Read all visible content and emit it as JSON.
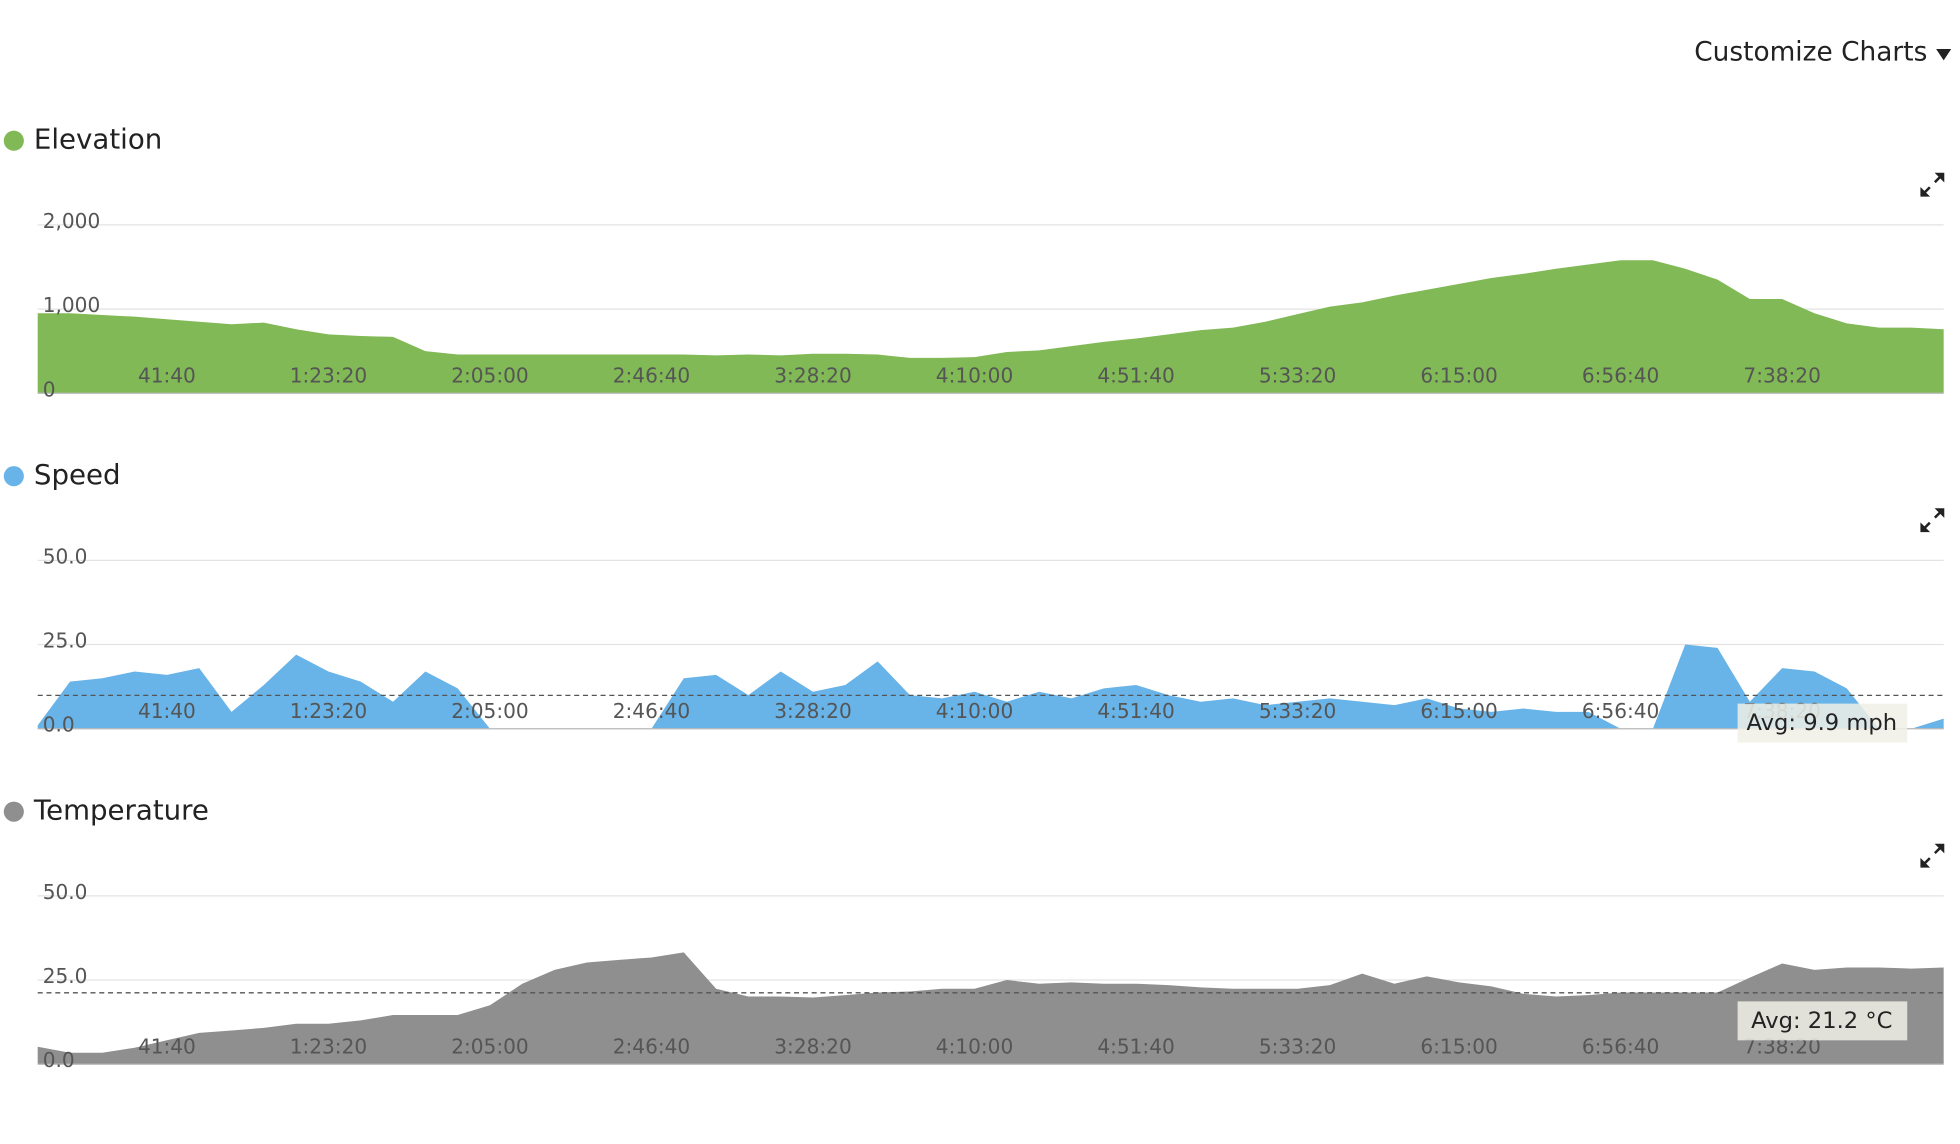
{
  "toolbar": {
    "button": "Customize Charts"
  },
  "chart_data": [
    {
      "type": "area",
      "title": "Elevation",
      "color": "#80b955",
      "x": [
        500,
        1000,
        1500,
        2000,
        2500,
        3000,
        3500,
        4000,
        4500,
        5000,
        5500,
        6000,
        6500,
        7000,
        7500,
        8000,
        8500,
        9000,
        9500,
        10000,
        10500,
        11000,
        11500,
        12000,
        12500,
        13000,
        13500,
        14000,
        14500,
        15000,
        15500,
        16000,
        16500,
        17000,
        17500,
        18000,
        18500,
        19000,
        19500,
        20000,
        20500,
        21000,
        21500,
        22000,
        22500,
        23000,
        23500,
        24000,
        24500,
        25000,
        25500,
        26000,
        26500,
        27000,
        27500,
        28000,
        28500,
        29000,
        29500,
        30000
      ],
      "values": [
        950,
        950,
        930,
        910,
        880,
        850,
        820,
        840,
        760,
        700,
        680,
        670,
        500,
        460,
        460,
        460,
        460,
        460,
        460,
        460,
        460,
        450,
        460,
        450,
        470,
        470,
        460,
        420,
        420,
        430,
        490,
        510,
        560,
        610,
        650,
        700,
        750,
        780,
        850,
        940,
        1030,
        1080,
        1160,
        1230,
        1300,
        1370,
        1420,
        1480,
        1530,
        1580,
        1580,
        1480,
        1350,
        1120,
        1120,
        950,
        830,
        780,
        780,
        760
      ],
      "xlim": [
        500,
        30000
      ],
      "xticks": [
        {
          "value": 2500,
          "label": "41:40"
        },
        {
          "value": 5000,
          "label": "1:23:20"
        },
        {
          "value": 7500,
          "label": "2:05:00"
        },
        {
          "value": 10000,
          "label": "2:46:40"
        },
        {
          "value": 12500,
          "label": "3:28:20"
        },
        {
          "value": 15000,
          "label": "4:10:00"
        },
        {
          "value": 17500,
          "label": "4:51:40"
        },
        {
          "value": 20000,
          "label": "5:33:20"
        },
        {
          "value": 22500,
          "label": "6:15:00"
        },
        {
          "value": 25000,
          "label": "6:56:40"
        },
        {
          "value": 27500,
          "label": "7:38:20"
        }
      ],
      "ylim": [
        0,
        2000
      ],
      "yticks": [
        0,
        {
          "value": 1000,
          "label": "1,000"
        },
        {
          "value": 2000,
          "label": "2,000"
        }
      ],
      "grid": true
    },
    {
      "type": "area",
      "title": "Speed",
      "color": "#68b3e8",
      "x": [
        500,
        1000,
        1500,
        2000,
        2500,
        3000,
        3500,
        4000,
        4500,
        5000,
        5500,
        6000,
        6500,
        7000,
        7500,
        8000,
        8500,
        9000,
        9500,
        10000,
        10500,
        11000,
        11500,
        12000,
        12500,
        13000,
        13500,
        14000,
        14500,
        15000,
        15500,
        16000,
        16500,
        17000,
        17500,
        18000,
        18500,
        19000,
        19500,
        20000,
        20500,
        21000,
        21500,
        22000,
        22500,
        23000,
        23500,
        24000,
        24500,
        25000,
        25500,
        26000,
        26500,
        27000,
        27500,
        28000,
        28500,
        29000,
        29500,
        30000
      ],
      "values": [
        1,
        14,
        15,
        17,
        16,
        18,
        5,
        13,
        22,
        17,
        14,
        8,
        17,
        12,
        0,
        0,
        0,
        0,
        0,
        0,
        15,
        16,
        10,
        17,
        11,
        13,
        20,
        10,
        9,
        11,
        8,
        11,
        9,
        12,
        13,
        10,
        8,
        9,
        7,
        8,
        9,
        8,
        7,
        9,
        6,
        5,
        6,
        5,
        5,
        0,
        0,
        25,
        24,
        8,
        18,
        17,
        12,
        0,
        0,
        3
      ],
      "xlim": [
        500,
        30000
      ],
      "xticks": [
        {
          "value": 2500,
          "label": "41:40"
        },
        {
          "value": 5000,
          "label": "1:23:20"
        },
        {
          "value": 7500,
          "label": "2:05:00"
        },
        {
          "value": 10000,
          "label": "2:46:40"
        },
        {
          "value": 12500,
          "label": "3:28:20"
        },
        {
          "value": 15000,
          "label": "4:10:00"
        },
        {
          "value": 17500,
          "label": "4:51:40"
        },
        {
          "value": 20000,
          "label": "5:33:20"
        },
        {
          "value": 22500,
          "label": "6:15:00"
        },
        {
          "value": 25000,
          "label": "6:56:40"
        },
        {
          "value": 27500,
          "label": "7:38:20"
        }
      ],
      "ylim": [
        0,
        50
      ],
      "yticks": [
        {
          "value": 0,
          "label": "0.0"
        },
        {
          "value": 25,
          "label": "25.0"
        },
        {
          "value": 50,
          "label": "50.0"
        }
      ],
      "grid": true,
      "average": {
        "value": 9.9,
        "label": "Avg: 9.9 mph"
      }
    },
    {
      "type": "area",
      "title": "Temperature",
      "color": "#8f8f8f",
      "x": [
        500,
        1000,
        1500,
        2000,
        2500,
        3000,
        3500,
        4000,
        4500,
        5000,
        5500,
        6000,
        6500,
        7000,
        7500,
        8000,
        8500,
        9000,
        9500,
        10000,
        10500,
        11000,
        11500,
        12000,
        12500,
        13000,
        13500,
        14000,
        14500,
        15000,
        15500,
        16000,
        16500,
        17000,
        17500,
        18000,
        18500,
        19000,
        19500,
        20000,
        20500,
        21000,
        21500,
        22000,
        22500,
        23000,
        23500,
        24000,
        24500,
        25000,
        25500,
        26000,
        26500,
        27000,
        27500,
        28000,
        28500,
        29000,
        29500,
        30000
      ],
      "values": [
        5.2,
        3.4,
        3.4,
        4.9,
        7.1,
        9.3,
        10,
        10.8,
        12,
        12,
        13,
        14.6,
        14.6,
        14.6,
        17.5,
        23.9,
        28,
        30.2,
        31,
        31.7,
        33.2,
        22.4,
        20.1,
        20.1,
        19.8,
        20.5,
        21.3,
        21.6,
        22.4,
        22.4,
        25,
        23.9,
        24.3,
        23.9,
        23.9,
        23.5,
        22.8,
        22.4,
        22.4,
        22.4,
        23.5,
        26.9,
        23.9,
        26.1,
        24.3,
        23.1,
        20.9,
        20.1,
        20.5,
        21.3,
        21.3,
        21.3,
        21.3,
        25.7,
        29.9,
        28,
        28.7,
        28.7,
        28.4,
        28.7
      ],
      "xlim": [
        500,
        30000
      ],
      "xticks": [
        {
          "value": 2500,
          "label": "41:40"
        },
        {
          "value": 5000,
          "label": "1:23:20"
        },
        {
          "value": 7500,
          "label": "2:05:00"
        },
        {
          "value": 10000,
          "label": "2:46:40"
        },
        {
          "value": 12500,
          "label": "3:28:20"
        },
        {
          "value": 15000,
          "label": "4:10:00"
        },
        {
          "value": 17500,
          "label": "4:51:40"
        },
        {
          "value": 20000,
          "label": "5:33:20"
        },
        {
          "value": 22500,
          "label": "6:15:00"
        },
        {
          "value": 25000,
          "label": "6:56:40"
        },
        {
          "value": 27500,
          "label": "7:38:20"
        }
      ],
      "ylim": [
        0,
        50
      ],
      "yticks": [
        {
          "value": 0,
          "label": "0.0"
        },
        {
          "value": 25,
          "label": "25.0"
        },
        {
          "value": 50,
          "label": "50.0"
        }
      ],
      "grid": true,
      "average": {
        "value": 21.2,
        "label": "Avg: 21.2 °C"
      }
    }
  ]
}
